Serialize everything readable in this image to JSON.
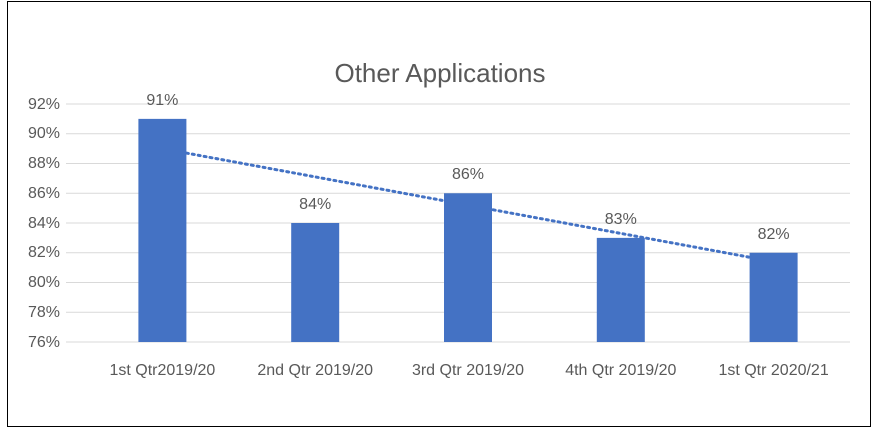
{
  "chart_data": {
    "type": "bar",
    "title": "Other Applications",
    "categories": [
      "1st Qtr2019/20",
      "2nd Qtr 2019/20",
      "3rd Qtr 2019/20",
      "4th Qtr 2019/20",
      "1st Qtr 2020/21"
    ],
    "values": [
      91,
      84,
      86,
      83,
      82
    ],
    "value_labels": [
      "91%",
      "84%",
      "86%",
      "83%",
      "82%"
    ],
    "color": "#4472c4",
    "ylim": [
      76,
      92
    ],
    "yticks": [
      {
        "value": 76,
        "label": "76%"
      },
      {
        "value": 78,
        "label": "78%"
      },
      {
        "value": 80,
        "label": "80%"
      },
      {
        "value": 82,
        "label": "82%"
      },
      {
        "value": 84,
        "label": "84%"
      },
      {
        "value": 86,
        "label": "86%"
      },
      {
        "value": 88,
        "label": "88%"
      },
      {
        "value": 90,
        "label": "90%"
      },
      {
        "value": 92,
        "label": "92%"
      }
    ],
    "grid": true,
    "trendline": {
      "type": "linear",
      "color": "#4472c4",
      "style": "dotted"
    }
  }
}
